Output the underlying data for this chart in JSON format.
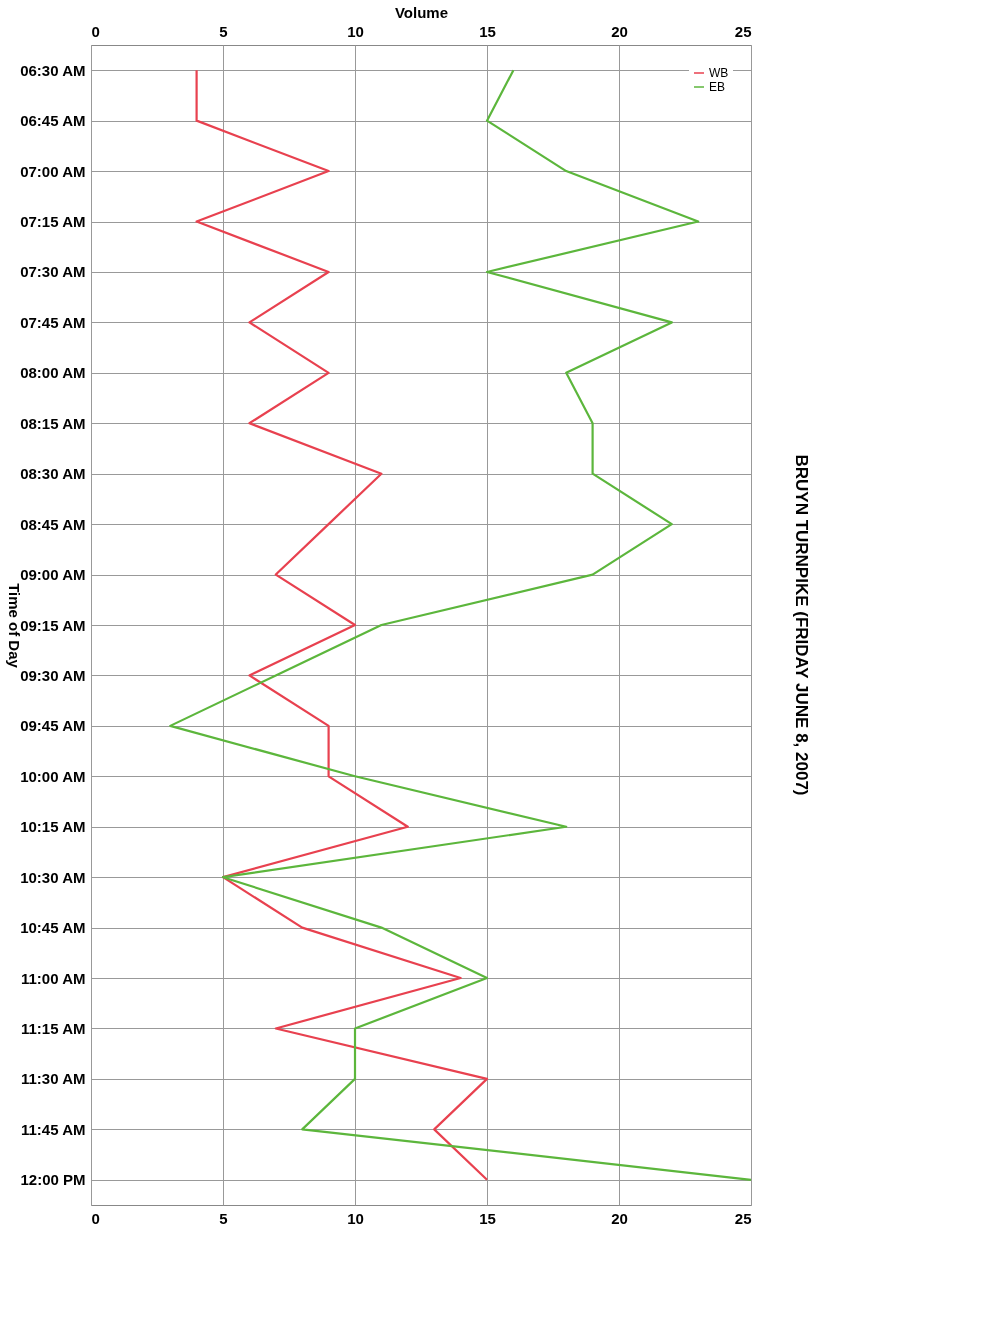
{
  "chart_data": {
    "type": "line",
    "title": "BRUYN TURNPIKE (FRIDAY JUNE 8, 2007)",
    "xlabel": "Volume",
    "ylabel": "Time of Day",
    "orientation": "horizontal",
    "categories": [
      "06:30 AM",
      "06:45 AM",
      "07:00 AM",
      "07:15 AM",
      "07:30 AM",
      "07:45 AM",
      "08:00 AM",
      "08:15 AM",
      "08:30 AM",
      "08:45 AM",
      "09:00 AM",
      "09:15 AM",
      "09:30 AM",
      "09:45 AM",
      "10:00 AM",
      "10:15 AM",
      "10:30 AM",
      "10:45 AM",
      "11:00 AM",
      "11:15 AM",
      "11:30 AM",
      "11:45 AM",
      "12:00 PM"
    ],
    "series": [
      {
        "name": "WB",
        "color": "#e8414f",
        "values": [
          4,
          4,
          9,
          4,
          9,
          6,
          9,
          6,
          11,
          9,
          7,
          10,
          6,
          9,
          9,
          12,
          5,
          8,
          14,
          7,
          15,
          13,
          15
        ]
      },
      {
        "name": "EB",
        "color": "#5cb63c",
        "values": [
          16,
          15,
          18,
          23,
          15,
          22,
          18,
          19,
          19,
          22,
          19,
          11,
          7,
          3,
          10,
          18,
          5,
          11,
          15,
          10,
          10,
          8,
          25
        ]
      }
    ],
    "xlim": [
      0,
      25
    ],
    "xticks": [
      0,
      5,
      10,
      15,
      20,
      25
    ],
    "x2lim": [
      0,
      25
    ],
    "x2ticks": [
      0,
      5,
      10,
      15,
      20,
      25
    ],
    "grid": true,
    "legend": "top right",
    "marker": "none",
    "line_style": "solid"
  }
}
